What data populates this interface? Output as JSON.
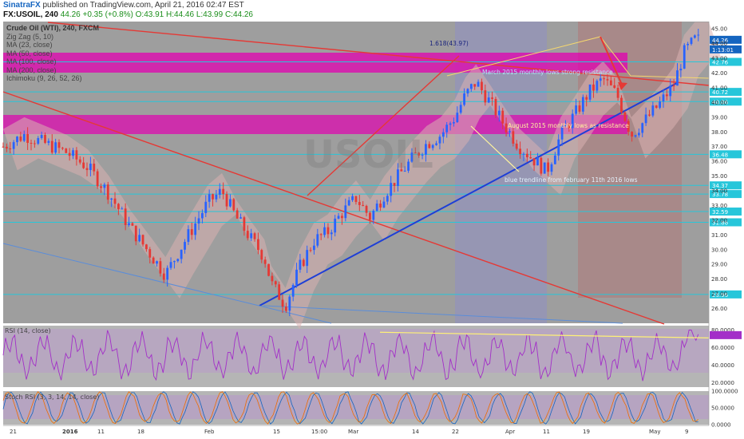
{
  "header": {
    "author": "SinatraFX",
    "published": "published on TradingView.com, April 21, 2016 02:47 EST",
    "symbol": "FX:USOIL, 240",
    "ohlc": "O:43.91 H:44.46 L:43.99 C:44.26",
    "change": "44.26 +0.35 (+0.8%)"
  },
  "indicators": [
    {
      "label": "Crude Oil (WTI), 240, FXCM",
      "color": "#333333"
    },
    {
      "label": "Zig Zag (5, 10)",
      "color": "#444444"
    },
    {
      "label": "MA (23, close)",
      "color": "#444444"
    },
    {
      "label": "MA (50, close)",
      "color": "#444444"
    },
    {
      "label": "MA (100, close)",
      "color": "#444444"
    },
    {
      "label": "MA (200, close)",
      "color": "#444444"
    },
    {
      "label": "Ichimoku (9, 26, 52, 26)",
      "color": "#444444"
    }
  ],
  "watermark": "USOIL",
  "annotations": {
    "fib": "1.618(43.97)",
    "march_2015": "March 2015 monthly lows strong resistance",
    "august_2015": "August 2015 monthly lows as resistance",
    "trendline": "blue trendline from february 11th 2016 lows"
  },
  "chart_data": {
    "type": "candlestick",
    "title": "Crude Oil (WTI), 240, FXCM",
    "ylim": [
      25.0,
      45.5
    ],
    "y_ticks": [
      "45.00",
      "44.00",
      "43.00",
      "42.00",
      "41.00",
      "40.00",
      "39.00",
      "38.00",
      "37.00",
      "36.00",
      "35.00",
      "34.00",
      "33.00",
      "32.00",
      "31.00",
      "30.00",
      "29.00",
      "28.00",
      "27.00",
      "26.00"
    ],
    "price_tags": [
      {
        "value": 44.26,
        "label": "44.26",
        "bg": "#1565c0"
      },
      {
        "value": 43.61,
        "label": "1:13:01",
        "bg": "#1565c0"
      },
      {
        "value": 42.76,
        "label": "42.76",
        "bg": "#26c6da"
      },
      {
        "value": 40.72,
        "label": "40.72",
        "bg": "#26c6da"
      },
      {
        "value": 40.06,
        "label": "40.06",
        "bg": "#26c6da"
      },
      {
        "value": 36.48,
        "label": "36.48",
        "bg": "#26c6da"
      },
      {
        "value": 34.37,
        "label": "34.37",
        "bg": "#26c6da"
      },
      {
        "value": 33.78,
        "label": "33.78",
        "bg": "#26c6da"
      },
      {
        "value": 32.59,
        "label": "32.59",
        "bg": "#26c6da"
      },
      {
        "value": 31.86,
        "label": "31.86",
        "bg": "#26c6da"
      },
      {
        "value": 26.96,
        "label": "26.96",
        "bg": "#26c6da"
      }
    ],
    "x_labels": [
      "21",
      "2016",
      "11",
      "18",
      "Feb",
      "15",
      "15:00",
      "Mar",
      "14",
      "22",
      "Apr",
      "11",
      "19",
      "May",
      "9"
    ],
    "price_path": [
      [
        0.0,
        37.0
      ],
      [
        0.03,
        37.8
      ],
      [
        0.06,
        37.2
      ],
      [
        0.09,
        36.6
      ],
      [
        0.12,
        35.6
      ],
      [
        0.15,
        33.8
      ],
      [
        0.18,
        31.5
      ],
      [
        0.21,
        29.6
      ],
      [
        0.23,
        28.3
      ],
      [
        0.25,
        30.0
      ],
      [
        0.27,
        31.6
      ],
      [
        0.29,
        33.2
      ],
      [
        0.31,
        34.0
      ],
      [
        0.33,
        32.2
      ],
      [
        0.35,
        30.8
      ],
      [
        0.37,
        29.5
      ],
      [
        0.38,
        27.7
      ],
      [
        0.4,
        26.2
      ],
      [
        0.42,
        28.8
      ],
      [
        0.44,
        30.6
      ],
      [
        0.46,
        31.2
      ],
      [
        0.48,
        32.5
      ],
      [
        0.5,
        33.5
      ],
      [
        0.52,
        32.2
      ],
      [
        0.54,
        33.8
      ],
      [
        0.56,
        35.0
      ],
      [
        0.58,
        36.2
      ],
      [
        0.6,
        37.2
      ],
      [
        0.62,
        37.8
      ],
      [
        0.64,
        39.0
      ],
      [
        0.655,
        40.5
      ],
      [
        0.67,
        41.4
      ],
      [
        0.69,
        40.0
      ],
      [
        0.71,
        38.5
      ],
      [
        0.73,
        37.1
      ],
      [
        0.75,
        36.2
      ],
      [
        0.77,
        35.3
      ],
      [
        0.79,
        37.8
      ],
      [
        0.81,
        39.2
      ],
      [
        0.83,
        40.7
      ],
      [
        0.85,
        41.6
      ],
      [
        0.87,
        40.5
      ],
      [
        0.89,
        37.8
      ],
      [
        0.91,
        38.8
      ],
      [
        0.93,
        39.9
      ],
      [
        0.95,
        41.2
      ],
      [
        0.965,
        43.4
      ],
      [
        0.98,
        44.26
      ],
      [
        1.0,
        44.26
      ]
    ],
    "rsi": {
      "label": "RSI (14, close)",
      "ylim": [
        15,
        85
      ],
      "ticks": [
        {
          "v": 80,
          "t": "80.0000"
        },
        {
          "v": 60,
          "t": "60.0000"
        },
        {
          "v": 40,
          "t": "40.0000"
        },
        {
          "v": 20,
          "t": "20.0000"
        }
      ],
      "last": 74.2
    },
    "stoch_rsi": {
      "label": "Stoch RSI (3, 3, 14, 14, close)",
      "ylim": [
        0,
        100
      ],
      "ticks": [
        {
          "v": 100,
          "t": "100.0000"
        },
        {
          "v": 50,
          "t": "50.0000"
        },
        {
          "v": 0,
          "t": "0.0000"
        }
      ]
    }
  },
  "colors": {
    "zone_magenta": "#e100b0",
    "red_line": "#e53935",
    "blue_line": "#1e3fd6",
    "cyan_line": "#26c6da",
    "candle_up": "#2962ff",
    "candle_down": "#e53935",
    "rsi_line": "#a32fc8",
    "gray_bg": "#9e9e9e",
    "yellow_line": "#fff176"
  }
}
